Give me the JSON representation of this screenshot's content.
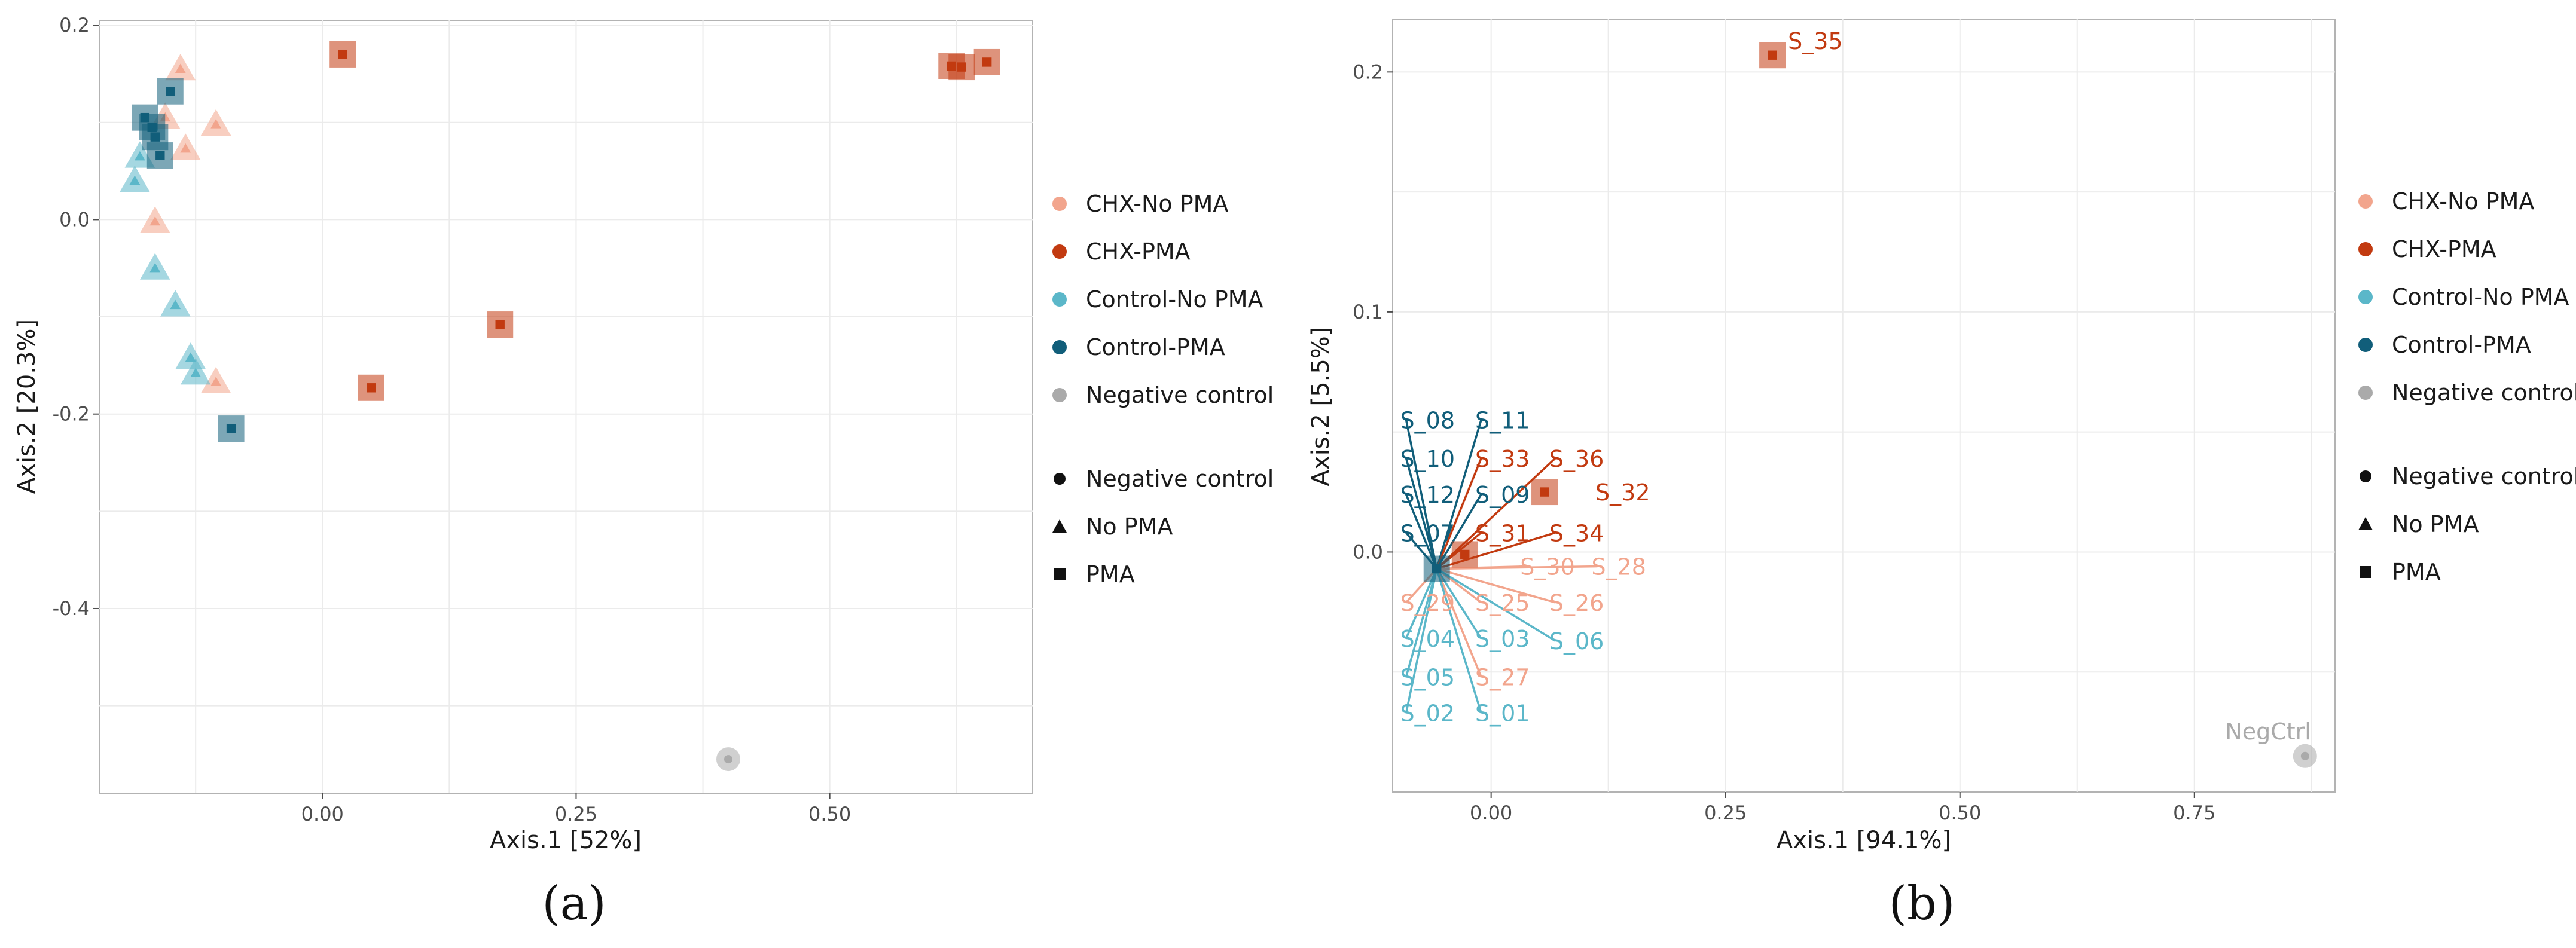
{
  "colors": {
    "CHX-No PMA": "#F2A58D",
    "CHX-PMA": "#C23A10",
    "Control-No PMA": "#5BB7C9",
    "Control-PMA": "#115E7A",
    "Negative control": "#AAAAAA"
  },
  "chart_data": [
    {
      "type": "scatter",
      "caption": "(a)",
      "xlabel": "Axis.1   [52%]",
      "ylabel": "Axis.2   [20.3%]",
      "xlim": [
        -0.22,
        0.7
      ],
      "ylim": [
        -0.59,
        0.205
      ],
      "xticks": [
        0.0,
        0.25,
        0.5
      ],
      "xtick_labels": [
        "0.00",
        "0.25",
        "0.50"
      ],
      "yticks": [
        0.2,
        0.0,
        -0.2,
        -0.4
      ],
      "ytick_labels": [
        "0.2",
        "0.0",
        "-0.2",
        "-0.4"
      ],
      "grid": true,
      "legend_position": "right",
      "legend": {
        "groups": [
          "CHX-No PMA",
          "CHX-PMA",
          "Control-No PMA",
          "Control-PMA",
          "Negative control"
        ],
        "shapes": [
          {
            "label": "Negative control",
            "shape": "circle"
          },
          {
            "label": "No PMA",
            "shape": "triangle"
          },
          {
            "label": "PMA",
            "shape": "square"
          }
        ]
      },
      "points": [
        {
          "x": 0.02,
          "y": 0.17,
          "group": "CHX-PMA",
          "shape": "square"
        },
        {
          "x": 0.62,
          "y": 0.158,
          "group": "CHX-PMA",
          "shape": "square"
        },
        {
          "x": 0.63,
          "y": 0.157,
          "group": "CHX-PMA",
          "shape": "square"
        },
        {
          "x": 0.655,
          "y": 0.162,
          "group": "CHX-PMA",
          "shape": "square"
        },
        {
          "x": 0.175,
          "y": -0.108,
          "group": "CHX-PMA",
          "shape": "square"
        },
        {
          "x": 0.048,
          "y": -0.173,
          "group": "CHX-PMA",
          "shape": "square"
        },
        {
          "x": -0.14,
          "y": 0.155,
          "group": "CHX-No PMA",
          "shape": "triangle"
        },
        {
          "x": -0.155,
          "y": 0.105,
          "group": "CHX-No PMA",
          "shape": "triangle"
        },
        {
          "x": -0.105,
          "y": 0.098,
          "group": "CHX-No PMA",
          "shape": "triangle"
        },
        {
          "x": -0.135,
          "y": 0.073,
          "group": "CHX-No PMA",
          "shape": "triangle"
        },
        {
          "x": -0.165,
          "y": -0.002,
          "group": "CHX-No PMA",
          "shape": "triangle"
        },
        {
          "x": -0.105,
          "y": -0.167,
          "group": "CHX-No PMA",
          "shape": "triangle"
        },
        {
          "x": -0.18,
          "y": 0.065,
          "group": "Control-No PMA",
          "shape": "triangle"
        },
        {
          "x": -0.185,
          "y": 0.04,
          "group": "Control-No PMA",
          "shape": "triangle"
        },
        {
          "x": -0.165,
          "y": -0.05,
          "group": "Control-No PMA",
          "shape": "triangle"
        },
        {
          "x": -0.145,
          "y": -0.088,
          "group": "Control-No PMA",
          "shape": "triangle"
        },
        {
          "x": -0.13,
          "y": -0.142,
          "group": "Control-No PMA",
          "shape": "triangle"
        },
        {
          "x": -0.125,
          "y": -0.158,
          "group": "Control-No PMA",
          "shape": "triangle"
        },
        {
          "x": -0.15,
          "y": 0.132,
          "group": "Control-PMA",
          "shape": "square"
        },
        {
          "x": -0.175,
          "y": 0.105,
          "group": "Control-PMA",
          "shape": "square"
        },
        {
          "x": -0.168,
          "y": 0.095,
          "group": "Control-PMA",
          "shape": "square"
        },
        {
          "x": -0.165,
          "y": 0.085,
          "group": "Control-PMA",
          "shape": "square"
        },
        {
          "x": -0.16,
          "y": 0.066,
          "group": "Control-PMA",
          "shape": "square"
        },
        {
          "x": -0.09,
          "y": -0.215,
          "group": "Control-PMA",
          "shape": "square"
        },
        {
          "x": 0.4,
          "y": -0.555,
          "group": "Negative control",
          "shape": "circle"
        }
      ]
    },
    {
      "type": "scatter",
      "caption": "(b)",
      "xlabel": "Axis.1   [94.1%]",
      "ylabel": "Axis.2   [5.5%]",
      "xlim": [
        -0.105,
        0.9
      ],
      "ylim": [
        -0.1,
        0.222
      ],
      "xticks": [
        0.0,
        0.25,
        0.5,
        0.75
      ],
      "xtick_labels": [
        "0.00",
        "0.25",
        "0.50",
        "0.75"
      ],
      "yticks": [
        0.2,
        0.1,
        0.0
      ],
      "ytick_labels": [
        "0.2",
        "0.1",
        "0.0"
      ],
      "grid": true,
      "legend_position": "right",
      "legend": {
        "groups": [
          "CHX-No PMA",
          "CHX-PMA",
          "Control-No PMA",
          "Control-PMA",
          "Negative control"
        ],
        "shapes": [
          {
            "label": "Negative control",
            "shape": "circle"
          },
          {
            "label": "No PMA",
            "shape": "triangle"
          },
          {
            "label": "PMA",
            "shape": "square"
          }
        ]
      },
      "hub": {
        "x": -0.058,
        "y": -0.007
      },
      "points": [
        {
          "x": 0.3,
          "y": 0.207,
          "group": "CHX-PMA",
          "shape": "square",
          "label": "S_35"
        },
        {
          "x": 0.057,
          "y": 0.025,
          "group": "CHX-PMA",
          "shape": "square",
          "label": "S_32"
        },
        {
          "x": -0.028,
          "y": -0.001,
          "group": "CHX-PMA",
          "shape": "square",
          "label": ""
        },
        {
          "x": 0.868,
          "y": -0.085,
          "group": "Negative control",
          "shape": "circle",
          "label": "NegCtrl"
        },
        {
          "x": -0.058,
          "y": -0.007,
          "group": "Control-PMA",
          "shape": "square",
          "label": ""
        }
      ],
      "sample_labels": [
        {
          "label": "S_08",
          "x": -0.097,
          "y": 0.055,
          "group": "Control-PMA"
        },
        {
          "label": "S_11",
          "x": -0.017,
          "y": 0.055,
          "group": "Control-PMA"
        },
        {
          "label": "S_10",
          "x": -0.097,
          "y": 0.039,
          "group": "Control-PMA"
        },
        {
          "label": "S_33",
          "x": -0.017,
          "y": 0.039,
          "group": "CHX-PMA"
        },
        {
          "label": "S_36",
          "x": 0.062,
          "y": 0.039,
          "group": "CHX-PMA"
        },
        {
          "label": "S_12",
          "x": -0.097,
          "y": 0.024,
          "group": "Control-PMA"
        },
        {
          "label": "S_09",
          "x": -0.017,
          "y": 0.024,
          "group": "Control-PMA"
        },
        {
          "label": "S_07",
          "x": -0.097,
          "y": 0.008,
          "group": "Control-PMA"
        },
        {
          "label": "S_31",
          "x": -0.017,
          "y": 0.008,
          "group": "CHX-PMA"
        },
        {
          "label": "S_34",
          "x": 0.062,
          "y": 0.008,
          "group": "CHX-PMA"
        },
        {
          "label": "S_30",
          "x": 0.031,
          "y": -0.006,
          "group": "CHX-No PMA"
        },
        {
          "label": "S_28",
          "x": 0.107,
          "y": -0.006,
          "group": "CHX-No PMA"
        },
        {
          "label": "S_29",
          "x": -0.097,
          "y": -0.021,
          "group": "CHX-No PMA"
        },
        {
          "label": "S_25",
          "x": -0.017,
          "y": -0.021,
          "group": "CHX-No PMA"
        },
        {
          "label": "S_26",
          "x": 0.062,
          "y": -0.021,
          "group": "CHX-No PMA"
        },
        {
          "label": "S_04",
          "x": -0.097,
          "y": -0.036,
          "group": "Control-No PMA"
        },
        {
          "label": "S_03",
          "x": -0.017,
          "y": -0.036,
          "group": "Control-No PMA"
        },
        {
          "label": "S_06",
          "x": 0.062,
          "y": -0.037,
          "group": "Control-No PMA"
        },
        {
          "label": "S_05",
          "x": -0.097,
          "y": -0.052,
          "group": "Control-No PMA"
        },
        {
          "label": "S_27",
          "x": -0.017,
          "y": -0.052,
          "group": "CHX-No PMA"
        },
        {
          "label": "S_02",
          "x": -0.097,
          "y": -0.067,
          "group": "Control-No PMA"
        },
        {
          "label": "S_01",
          "x": -0.017,
          "y": -0.067,
          "group": "Control-No PMA"
        }
      ]
    }
  ]
}
